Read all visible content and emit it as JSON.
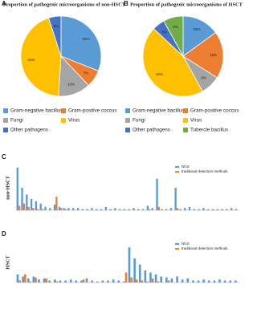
{
  "chart_data": [
    {
      "type": "pie",
      "panel_label": "A",
      "title": "Proportion of pathogenic microorganisms of non-HSCT",
      "categories": [
        "Gram-negative bacillus",
        "Gram-positive coccus",
        "Fungi",
        "Virus",
        "Other pathogens"
      ],
      "values": [
        31,
        7,
        13,
        44,
        5
      ],
      "value_labels": [
        "31%",
        "7%",
        "13%",
        "44%",
        "5%"
      ],
      "colors": [
        "#5b9bd5",
        "#ed7d31",
        "#a5a5a5",
        "#ffc000",
        "#4472c4"
      ]
    },
    {
      "type": "pie",
      "panel_label": "B",
      "title": "Proportion of pathogenic microorganisms of HSCT",
      "categories": [
        "Gram-negative bacillus",
        "Gram-positive coccus",
        "Fungi",
        "Virus",
        "Other pathogens",
        "Tubercle bacillus"
      ],
      "values": [
        15,
        19,
        8,
        45,
        5,
        8
      ],
      "value_labels": [
        "15%",
        "19%",
        "8%",
        "45%",
        "5%",
        "8%"
      ],
      "colors": [
        "#5b9bd5",
        "#ed7d31",
        "#a5a5a5",
        "#ffc000",
        "#4472c4",
        "#70ad47"
      ]
    },
    {
      "type": "bar",
      "panel_label": "C",
      "ylabel": "non-HSCT",
      "ylim": [
        0,
        40
      ],
      "categories": [
        null,
        null,
        null,
        null,
        null,
        null,
        null,
        null,
        null,
        null,
        null,
        null,
        null,
        null,
        null,
        null,
        null,
        null,
        null,
        null,
        null,
        null,
        null,
        null,
        null,
        null,
        null,
        null,
        null,
        null,
        null,
        null,
        null,
        null,
        null,
        null,
        null,
        null,
        null,
        null,
        null,
        null,
        null,
        null,
        null,
        null,
        null,
        null
      ],
      "series": [
        {
          "name": "NGS",
          "color": "#5b9bd5",
          "values": [
            38,
            20,
            14,
            10,
            8,
            6,
            3,
            2,
            5,
            3,
            2,
            2,
            2,
            2,
            1,
            1,
            2,
            1,
            1,
            3,
            1,
            2,
            1,
            1,
            1,
            2,
            1,
            1,
            4,
            2,
            28,
            1,
            1,
            2,
            20,
            1,
            2,
            3,
            1,
            1,
            2,
            1,
            1,
            1,
            1,
            1,
            2,
            1
          ]
        },
        {
          "name": "traditional detection methods",
          "color": "#ed7d31",
          "values": [
            4,
            6,
            3,
            2,
            1,
            1,
            0,
            0,
            12,
            2,
            1,
            0,
            0,
            0,
            0,
            0,
            0,
            0,
            0,
            0,
            0,
            0,
            0,
            0,
            0,
            0,
            0,
            0,
            1,
            0,
            3,
            0,
            0,
            0,
            2,
            0,
            0,
            0,
            0,
            0,
            0,
            0,
            0,
            0,
            0,
            0,
            0,
            0
          ]
        }
      ]
    },
    {
      "type": "bar",
      "panel_label": "D",
      "ylabel": "HSCT",
      "ylim": [
        0,
        40
      ],
      "categories": [
        null,
        null,
        null,
        null,
        null,
        null,
        null,
        null,
        null,
        null,
        null,
        null,
        null,
        null,
        null,
        null,
        null,
        null,
        null,
        null,
        null,
        null,
        null,
        null,
        null,
        null,
        null,
        null,
        null,
        null,
        null,
        null,
        null,
        null,
        null,
        null,
        null,
        null,
        null,
        null,
        null,
        null
      ],
      "series": [
        {
          "name": "NGS",
          "color": "#5b9bd5",
          "values": [
            8,
            6,
            4,
            6,
            3,
            4,
            2,
            3,
            2,
            2,
            3,
            2,
            2,
            4,
            2,
            1,
            2,
            2,
            3,
            2,
            1,
            35,
            24,
            18,
            12,
            10,
            8,
            6,
            5,
            4,
            6,
            3,
            4,
            2,
            2,
            3,
            2,
            2,
            3,
            2,
            2,
            2
          ]
        },
        {
          "name": "traditional detection methods",
          "color": "#ed7d31",
          "values": [
            2,
            8,
            1,
            5,
            0,
            4,
            0,
            1,
            0,
            0,
            0,
            0,
            3,
            0,
            0,
            0,
            0,
            0,
            0,
            0,
            10,
            5,
            3,
            2,
            1,
            4,
            1,
            0,
            2,
            0,
            0,
            0,
            0,
            0,
            0,
            0,
            0,
            0,
            0,
            0,
            0,
            0
          ]
        }
      ]
    }
  ]
}
